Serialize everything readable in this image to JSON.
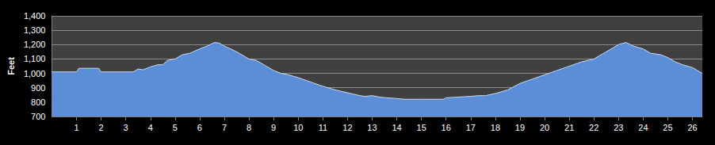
{
  "chart_data": {
    "type": "area",
    "y_label": "Feet",
    "x": [
      0,
      1,
      1.1,
      1.9,
      2.0,
      3.3,
      3.5,
      3.7,
      4,
      4.3,
      4.5,
      4.7,
      5,
      5.3,
      5.6,
      6,
      6.3,
      6.6,
      6.8,
      7,
      7.5,
      7.8,
      8,
      8.3,
      8.6,
      9,
      9.3,
      9.6,
      10,
      10.5,
      11,
      11.5,
      12,
      12.5,
      12.7,
      13,
      13.3,
      13.6,
      14,
      14.3,
      15,
      15.5,
      15.9,
      16,
      16.5,
      17,
      17.3,
      17.6,
      18,
      18.5,
      19,
      19.5,
      20,
      20.5,
      21,
      21.5,
      22,
      22.5,
      23,
      23.3,
      23.6,
      24,
      24.3,
      24.7,
      25,
      25.3,
      25.6,
      26,
      26.2,
      26.4
    ],
    "values": [
      1010,
      1010,
      1035,
      1035,
      1010,
      1010,
      1030,
      1025,
      1045,
      1060,
      1060,
      1090,
      1100,
      1130,
      1140,
      1170,
      1190,
      1215,
      1210,
      1190,
      1150,
      1120,
      1100,
      1090,
      1060,
      1020,
      1000,
      990,
      970,
      940,
      910,
      885,
      865,
      845,
      840,
      845,
      835,
      830,
      825,
      820,
      820,
      820,
      820,
      830,
      835,
      840,
      845,
      845,
      860,
      885,
      930,
      960,
      990,
      1020,
      1050,
      1080,
      1100,
      1150,
      1200,
      1215,
      1190,
      1170,
      1140,
      1130,
      1110,
      1080,
      1060,
      1040,
      1020,
      1000
    ],
    "color": "#5b8ed6",
    "xlim": [
      0,
      26.4
    ],
    "xticks": [
      1,
      2,
      3,
      4,
      5,
      6,
      7,
      8,
      9,
      10,
      11,
      12,
      13,
      14,
      15,
      16,
      17,
      18,
      19,
      20,
      21,
      22,
      23,
      24,
      25,
      26
    ],
    "ylim": [
      700,
      1400
    ],
    "yticks": [
      700,
      800,
      900,
      1000,
      1100,
      1200,
      1300,
      1400
    ],
    "grid": true
  }
}
